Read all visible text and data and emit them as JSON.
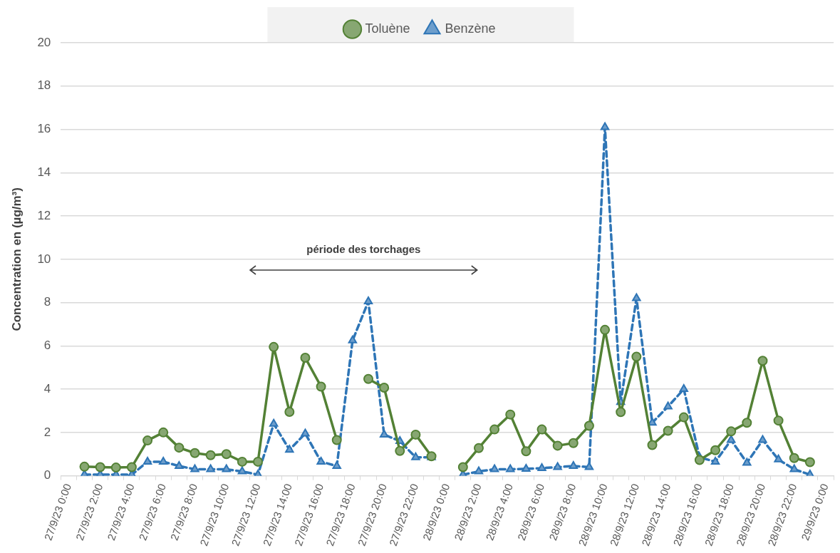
{
  "chart_data": {
    "type": "line",
    "ylabel": "Concentration en (µg/m³)",
    "categories": [
      "27/9/23 0:00",
      null,
      "27/9/23 2:00",
      null,
      "27/9/23 4:00",
      null,
      "27/9/23 6:00",
      null,
      "27/9/23 8:00",
      null,
      "27/9/23 10:00",
      null,
      "27/9/23 12:00",
      null,
      "27/9/23 14:00",
      null,
      "27/9/23 16:00",
      null,
      "27/9/23 18:00",
      null,
      "27/9/23 20:00",
      null,
      "27/9/23 22:00",
      null,
      "28/9/23 0:00",
      null,
      "28/9/23 2:00",
      null,
      "28/9/23 4:00",
      null,
      "28/9/23 6:00",
      null,
      "28/9/23 8:00",
      null,
      "28/9/23 10:00",
      null,
      "28/9/23 12:00",
      null,
      "28/9/23 14:00",
      null,
      "28/9/23 16:00",
      null,
      "28/9/23 18:00",
      null,
      "28/9/23 20:00",
      null,
      "28/9/23 22:00",
      null,
      "29/9/23 0:00"
    ],
    "series": [
      {
        "name": "Benzène",
        "color": "#2e75b6",
        "marker": "triangle",
        "line_style": "dashed",
        "values": [
          null,
          0.05,
          0.05,
          0.05,
          0.05,
          0.65,
          0.65,
          0.45,
          0.3,
          0.3,
          0.3,
          0.2,
          0.05,
          2.4,
          1.2,
          1.95,
          0.65,
          0.45,
          6.25,
          8.05,
          1.9,
          1.6,
          0.85,
          0.85,
          null,
          0.05,
          0.2,
          0.3,
          0.3,
          0.32,
          0.35,
          0.4,
          0.45,
          0.4,
          16.1,
          3.4,
          8.2,
          2.45,
          3.2,
          4.0,
          0.85,
          0.65,
          1.65,
          0.6,
          1.65,
          0.75,
          0.3,
          0.05,
          null
        ]
      },
      {
        "name": "Toluène",
        "color": "#538135",
        "marker": "circle",
        "line_style": "solid",
        "values": [
          null,
          0.42,
          0.4,
          0.38,
          0.4,
          1.63,
          2.0,
          1.3,
          1.05,
          0.95,
          1.0,
          0.65,
          0.65,
          5.95,
          2.95,
          5.45,
          4.12,
          1.65,
          null,
          4.47,
          4.07,
          1.15,
          1.9,
          0.9,
          null,
          0.4,
          1.28,
          2.14,
          2.83,
          1.13,
          2.14,
          1.39,
          1.51,
          2.31,
          6.74,
          2.94,
          5.5,
          1.42,
          2.08,
          2.7,
          0.73,
          1.18,
          2.05,
          2.45,
          5.31,
          2.55,
          0.82,
          0.63,
          null
        ]
      }
    ],
    "ylim": [
      0,
      20
    ],
    "yticks": [
      0,
      2,
      4,
      6,
      8,
      10,
      12,
      14,
      16,
      18,
      20
    ],
    "grid": "y",
    "legend": "top",
    "annotations": [
      "période des torchages"
    ]
  }
}
